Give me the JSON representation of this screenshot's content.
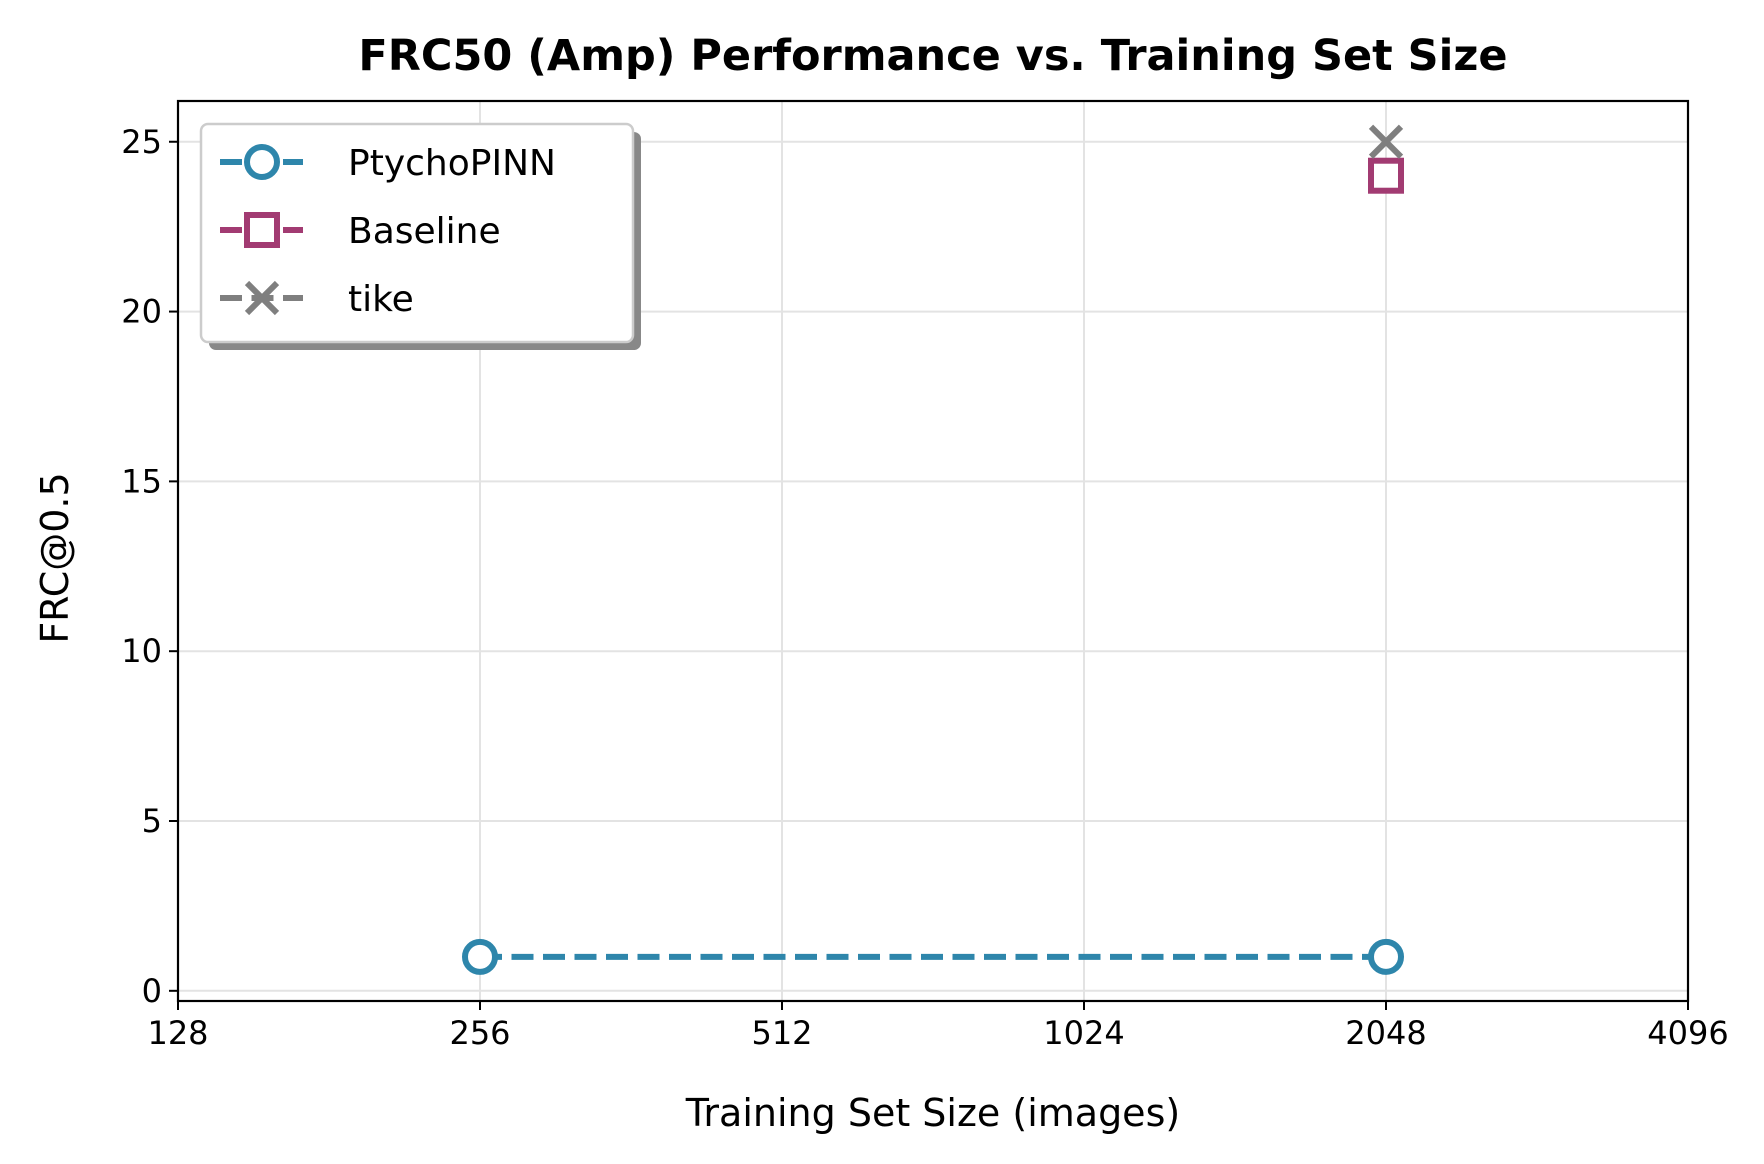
{
  "chart_data": {
    "type": "line",
    "title": "FRC50 (Amp) Performance vs. Training Set Size",
    "xlabel": "Training Set Size (images)",
    "ylabel": "FRC@0.5",
    "x_scale": "log2",
    "xlim": [
      128,
      4096
    ],
    "ylim": [
      -0.3,
      26.2
    ],
    "x_ticks": [
      "128",
      "256",
      "512",
      "1024",
      "2048",
      "4096"
    ],
    "x_tick_values": [
      128,
      256,
      512,
      1024,
      2048,
      4096
    ],
    "y_ticks": [
      "0",
      "5",
      "10",
      "15",
      "20",
      "25"
    ],
    "y_tick_values": [
      0,
      5,
      10,
      15,
      20,
      25
    ],
    "grid": true,
    "legend_position": "top-left",
    "series": [
      {
        "name": "PtychoPINN",
        "color": "#2e86ab",
        "marker": "circle",
        "line": "dashed",
        "x": [
          256,
          2048
        ],
        "y": [
          1,
          1
        ]
      },
      {
        "name": "Baseline",
        "color": "#a23b72",
        "marker": "square",
        "line": "dashed",
        "x": [
          2048
        ],
        "y": [
          24
        ]
      },
      {
        "name": "tike",
        "color": "#7f7f7f",
        "marker": "x",
        "line": "dashed",
        "x": [
          2048
        ],
        "y": [
          25
        ]
      }
    ]
  }
}
